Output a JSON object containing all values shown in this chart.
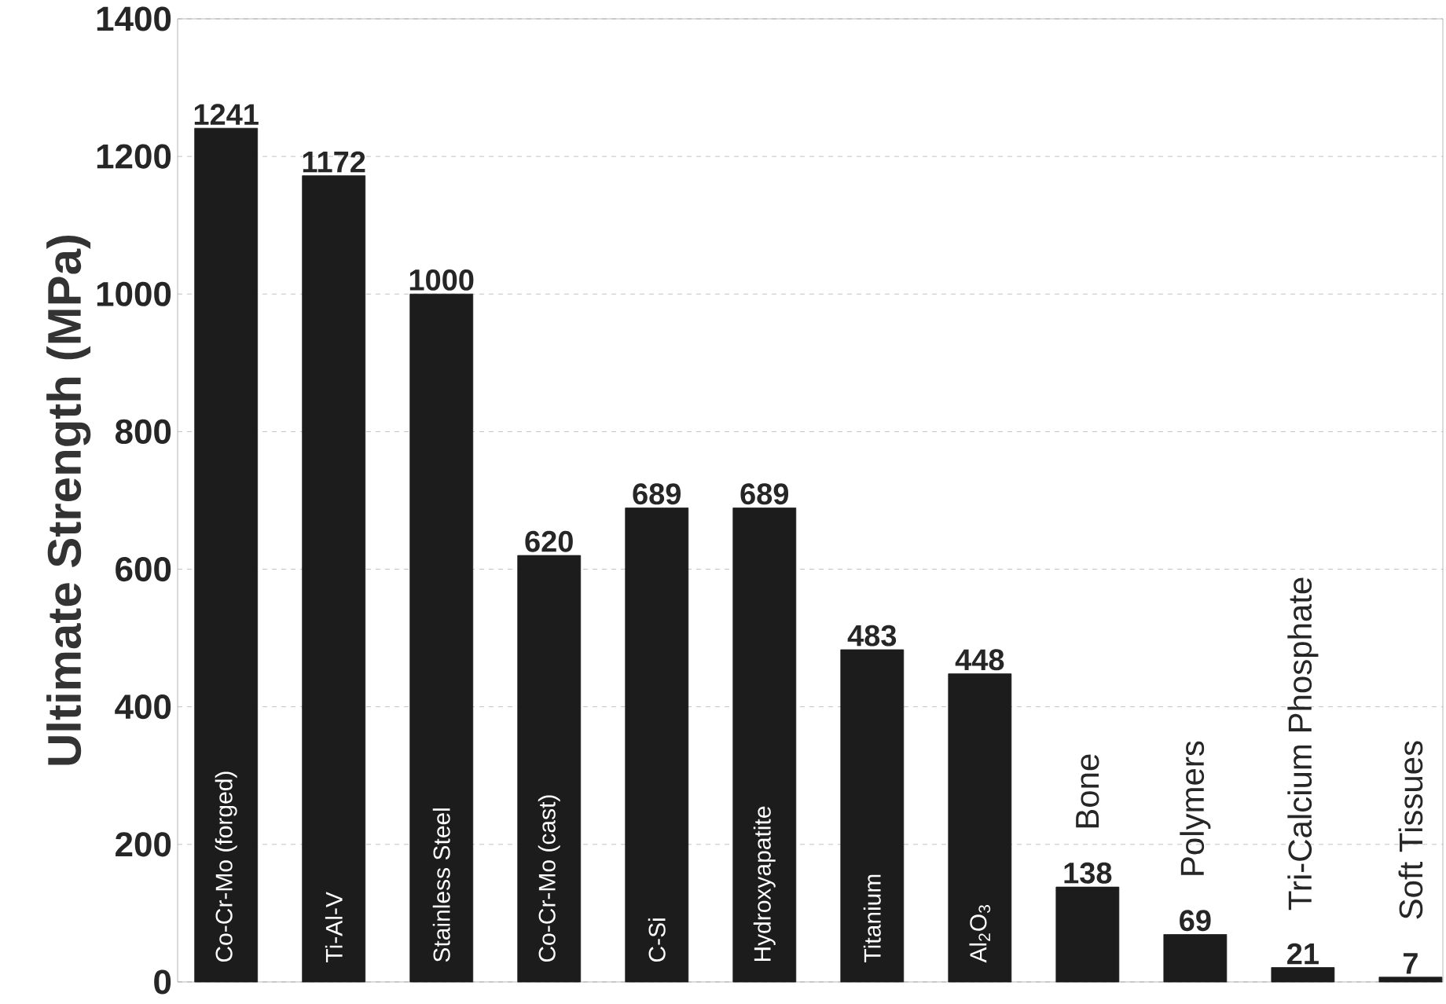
{
  "chart_data": {
    "type": "bar",
    "ylabel": "Ultimate Strength (MPa)",
    "categories": [
      "Co-Cr-Mo (forged)",
      "Ti-Al-V",
      "Stainless Steel",
      "Co-Cr-Mo (cast)",
      "C-Si",
      "Hydroxyapatite",
      "Titanium",
      "Al$_{2}$O$_{3}$",
      "Bone",
      "Polymers",
      "Tri-Calcium Phosphate",
      "Soft Tissues"
    ],
    "values": [
      1241,
      1172,
      1000,
      620,
      689,
      689,
      483,
      448,
      138,
      69,
      21,
      7
    ],
    "color": "#1c1c1c",
    "ylim": [
      0,
      1400
    ],
    "yticks": [
      0,
      200,
      400,
      600,
      800,
      1000,
      1200,
      1400
    ],
    "grid": "y",
    "data_labels": true
  }
}
